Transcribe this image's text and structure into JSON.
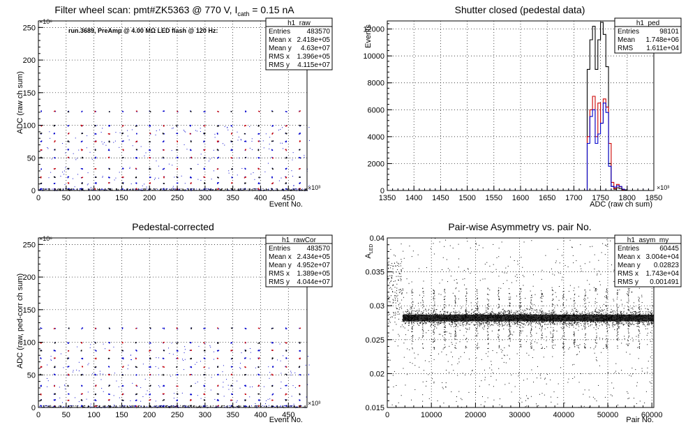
{
  "colors": {
    "black": "#000000",
    "red": "#cc0000",
    "blue": "#0000cc",
    "grid": "#000000"
  },
  "chart_data": [
    {
      "type": "scatter",
      "title": "Filter wheel scan: pmt#ZK5363 @   770 V, I",
      "title_sub": "cath",
      "title_suffix": " = 0.15 nA",
      "annotation": "run.3689, PreAmp @ 4.00 MΩ LED flash @  120 Hz:",
      "xlabel": "Event No.",
      "ylabel": "ADC (raw ch sum)",
      "x_multiplier": "×10³",
      "y_multiplier": "×10⁶",
      "xlim": [
        0,
        483.57
      ],
      "ylim": [
        0,
        260
      ],
      "xticks": [
        0,
        50,
        100,
        150,
        200,
        250,
        300,
        350,
        400,
        450
      ],
      "yticks": [
        0,
        50,
        100,
        150,
        200,
        250
      ],
      "levels": [
        122,
        100,
        88,
        76,
        63,
        51,
        34,
        21,
        12,
        3
      ],
      "period": 24.5,
      "stats": {
        "name": "h1_raw",
        "rows": [
          {
            "label": "Entries",
            "value": "483570"
          },
          {
            "label": "Mean x",
            "value": "2.418e+05"
          },
          {
            "label": "Mean y",
            "value": "4.63e+07"
          },
          {
            "label": "RMS x",
            "value": "1.396e+05"
          },
          {
            "label": "RMS y",
            "value": "4.115e+07"
          }
        ]
      }
    },
    {
      "type": "bar",
      "title": "Shutter closed (pedestal data)",
      "xlabel": "ADC (raw ch sum)",
      "ylabel": "Events",
      "x_multiplier": "×10³",
      "xlim": [
        1350,
        1850
      ],
      "ylim": [
        0,
        12600
      ],
      "xticks": [
        1350,
        1400,
        1450,
        1500,
        1550,
        1600,
        1650,
        1700,
        1750,
        1800,
        1850
      ],
      "yticks": [
        0,
        2000,
        4000,
        6000,
        8000,
        10000,
        12000
      ],
      "series": [
        {
          "color": "black",
          "bins": [
            [
              1720,
              1725,
              0
            ],
            [
              1725,
              1730,
              9000
            ],
            [
              1730,
              1735,
              11200
            ],
            [
              1735,
              1740,
              12200
            ],
            [
              1740,
              1745,
              9000
            ],
            [
              1745,
              1750,
              11200
            ],
            [
              1750,
              1755,
              12500
            ],
            [
              1755,
              1760,
              11600
            ],
            [
              1760,
              1765,
              9200
            ],
            [
              1765,
              1770,
              2000
            ],
            [
              1770,
              1775,
              300
            ],
            [
              1775,
              1780,
              100
            ],
            [
              1780,
              1785,
              200
            ],
            [
              1785,
              1790,
              150
            ],
            [
              1790,
              1795,
              100
            ],
            [
              1795,
              1800,
              50
            ]
          ]
        },
        {
          "color": "red",
          "bins": [
            [
              1720,
              1725,
              0
            ],
            [
              1725,
              1730,
              4000
            ],
            [
              1730,
              1735,
              6000
            ],
            [
              1735,
              1740,
              7000
            ],
            [
              1740,
              1745,
              4000
            ],
            [
              1745,
              1750,
              6500
            ],
            [
              1750,
              1755,
              5000
            ],
            [
              1755,
              1760,
              6800
            ],
            [
              1760,
              1765,
              6200
            ],
            [
              1765,
              1770,
              3500
            ],
            [
              1770,
              1775,
              600
            ],
            [
              1775,
              1780,
              150
            ],
            [
              1780,
              1785,
              450
            ],
            [
              1785,
              1790,
              280
            ],
            [
              1790,
              1795,
              50
            ]
          ]
        },
        {
          "color": "blue",
          "bins": [
            [
              1720,
              1725,
              0
            ],
            [
              1725,
              1730,
              3500
            ],
            [
              1730,
              1735,
              5500
            ],
            [
              1735,
              1740,
              6000
            ],
            [
              1740,
              1745,
              3500
            ],
            [
              1745,
              1750,
              4200
            ],
            [
              1750,
              1755,
              5000
            ],
            [
              1755,
              1760,
              6500
            ],
            [
              1760,
              1765,
              5800
            ],
            [
              1765,
              1770,
              1800
            ],
            [
              1770,
              1775,
              300
            ],
            [
              1775,
              1780,
              250
            ],
            [
              1780,
              1785,
              350
            ],
            [
              1785,
              1790,
              300
            ],
            [
              1790,
              1795,
              100
            ]
          ]
        }
      ],
      "stats": {
        "name": "h1_ped",
        "rows": [
          {
            "label": "Entries",
            "value": "98101"
          },
          {
            "label": "Mean",
            "value": "1.748e+06"
          },
          {
            "label": "RMS",
            "value": "1.611e+04"
          }
        ]
      }
    },
    {
      "type": "scatter",
      "title": "Pedestal-corrected",
      "xlabel": "Event No.",
      "ylabel": "ADC (raw, ped-corr ch sum)",
      "x_multiplier": "×10³",
      "y_multiplier": "×10⁶",
      "xlim": [
        0,
        483.57
      ],
      "ylim": [
        0,
        260
      ],
      "xticks": [
        0,
        50,
        100,
        150,
        200,
        250,
        300,
        350,
        400,
        450
      ],
      "yticks": [
        0,
        50,
        100,
        150,
        200,
        250
      ],
      "levels": [
        122,
        100,
        88,
        76,
        63,
        51,
        34,
        21,
        12,
        3
      ],
      "period": 24.5,
      "stats": {
        "name": "h1_rawCor",
        "rows": [
          {
            "label": "Entries",
            "value": "483570"
          },
          {
            "label": "Mean x",
            "value": "2.434e+05"
          },
          {
            "label": "Mean y",
            "value": "4.952e+07"
          },
          {
            "label": "RMS x",
            "value": "1.389e+05"
          },
          {
            "label": "RMS y",
            "value": "4.044e+07"
          }
        ]
      }
    },
    {
      "type": "scatter",
      "title": "Pair-wise Asymmetry vs. pair No.",
      "xlabel": "Pair No.",
      "ylabel": "A",
      "ylabel_sub": "LED",
      "xlim": [
        0,
        60445
      ],
      "ylim": [
        0.015,
        0.04
      ],
      "xticks": [
        0,
        10000,
        20000,
        30000,
        40000,
        50000,
        60000
      ],
      "yticks": [
        0.015,
        0.02,
        0.025,
        0.03,
        0.035,
        0.04
      ],
      "band_center": 0.0282,
      "band_width": 0.0005,
      "stats": {
        "name": "h1_asym_my",
        "rows": [
          {
            "label": "Entries",
            "value": "60445"
          },
          {
            "label": "Mean x",
            "value": "3.004e+04"
          },
          {
            "label": "Mean y",
            "value": "0.02823"
          },
          {
            "label": "RMS x",
            "value": "1.743e+04"
          },
          {
            "label": "RMS y",
            "value": "0.001491"
          }
        ]
      }
    }
  ]
}
